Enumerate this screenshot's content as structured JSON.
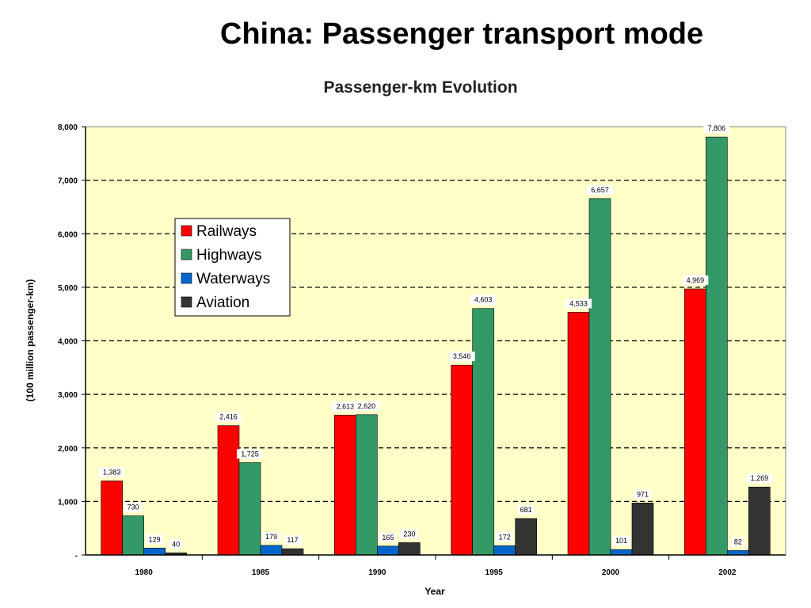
{
  "slide": {
    "title": "China: Passenger transport mode"
  },
  "chart_data": {
    "type": "bar",
    "title": "Passenger-km Evolution",
    "xlabel": "Year",
    "ylabel": "(100 million passenger-km)",
    "ylim": [
      0,
      8000
    ],
    "yticks": [
      0,
      1000,
      2000,
      3000,
      4000,
      5000,
      6000,
      7000,
      8000
    ],
    "ytick_labels": [
      "-",
      "1,000",
      "2,000",
      "3,000",
      "4,000",
      "5,000",
      "6,000",
      "7,000",
      "8,000"
    ],
    "grid": "dashed horizontal",
    "legend_position": "top-left",
    "plot_background": "#FFFFC8",
    "categories": [
      "1980",
      "1985",
      "1990",
      "1995",
      "2000",
      "2002"
    ],
    "series": [
      {
        "name": "Railways",
        "color": "#FF0000",
        "values": [
          1383,
          2416,
          2613,
          3546,
          4533,
          4969
        ],
        "labels": [
          "1,383",
          "2,416",
          "2,613",
          "3,546",
          "4,533",
          "4,969"
        ]
      },
      {
        "name": "Highways",
        "color": "#339966",
        "values": [
          730,
          1725,
          2620,
          4603,
          6657,
          7806
        ],
        "labels": [
          "730",
          "1,725",
          "2,620",
          "4,603",
          "6,657",
          "7,806"
        ]
      },
      {
        "name": "Waterways",
        "color": "#0066CC",
        "values": [
          129,
          179,
          165,
          172,
          101,
          82
        ],
        "labels": [
          "129",
          "179",
          "165",
          "172",
          "101",
          "82"
        ]
      },
      {
        "name": "Aviation",
        "color": "#333333",
        "values": [
          40,
          117,
          230,
          681,
          971,
          1269
        ],
        "labels": [
          "40",
          "117",
          "230",
          "681",
          "971",
          "1,269"
        ]
      }
    ]
  }
}
